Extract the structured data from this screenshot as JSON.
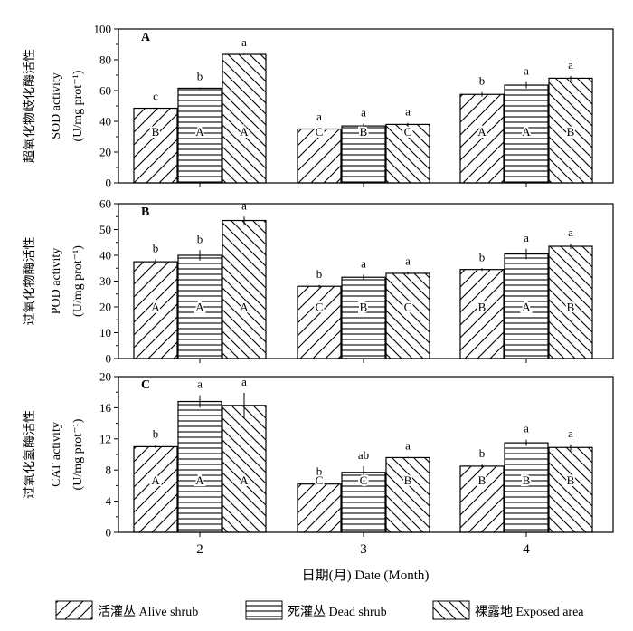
{
  "chart_data": [
    {
      "type": "bar",
      "panel_letter": "A",
      "categories": [
        "2",
        "3",
        "4"
      ],
      "series": [
        {
          "name": "Alive shrub",
          "values": [
            48.5,
            35.0,
            57.5
          ],
          "errors": [
            0.5,
            1.0,
            1.5
          ]
        },
        {
          "name": "Dead shrub",
          "values": [
            61.5,
            37.0,
            63.5
          ],
          "errors": [
            0.5,
            1.5,
            2.0
          ]
        },
        {
          "name": "Exposed area",
          "values": [
            83.5,
            38.0,
            68.0
          ],
          "errors": [
            0.5,
            1.0,
            1.5
          ]
        }
      ],
      "ylabel_cn": "超氧化物歧化酶活性",
      "ylabel": "SOD activity",
      "yunit": "(U/mg prot⁻¹)",
      "ylim": [
        0,
        100
      ],
      "yticks": [
        "0",
        "20",
        "40",
        "60",
        "80",
        "100"
      ],
      "lowercase_letters": [
        [
          "c",
          "b",
          "a"
        ],
        [
          "a",
          "a",
          "a"
        ],
        [
          "b",
          "a",
          "a"
        ]
      ],
      "uppercase_letters": [
        [
          "B",
          "A",
          "A"
        ],
        [
          "C",
          "B",
          "C"
        ],
        [
          "A",
          "A",
          "B"
        ]
      ]
    },
    {
      "type": "bar",
      "panel_letter": "B",
      "categories": [
        "2",
        "3",
        "4"
      ],
      "series": [
        {
          "name": "Alive shrub",
          "values": [
            37.5,
            28.0,
            34.5
          ],
          "errors": [
            1.0,
            0.5,
            0.5
          ]
        },
        {
          "name": "Dead shrub",
          "values": [
            40.0,
            31.5,
            40.5
          ],
          "errors": [
            2.0,
            1.0,
            2.0
          ]
        },
        {
          "name": "Exposed area",
          "values": [
            53.5,
            33.0,
            43.5
          ],
          "errors": [
            1.5,
            0.5,
            1.0
          ]
        }
      ],
      "ylabel_cn": "过氧化物酶活性",
      "ylabel": "POD activity",
      "yunit": "(U/mg prot⁻¹)",
      "ylim": [
        0,
        60
      ],
      "yticks": [
        "0",
        "10",
        "20",
        "30",
        "40",
        "50",
        "60"
      ],
      "lowercase_letters": [
        [
          "b",
          "b",
          "a"
        ],
        [
          "b",
          "a",
          "a"
        ],
        [
          "b",
          "a",
          "a"
        ]
      ],
      "uppercase_letters": [
        [
          "A",
          "A",
          "A"
        ],
        [
          "C",
          "B",
          "C"
        ],
        [
          "B",
          "A",
          "B"
        ]
      ]
    },
    {
      "type": "bar",
      "panel_letter": "C",
      "categories": [
        "2",
        "3",
        "4"
      ],
      "series": [
        {
          "name": "Alive shrub",
          "values": [
            11.0,
            6.2,
            8.5
          ],
          "errors": [
            0.2,
            0.2,
            0.2
          ]
        },
        {
          "name": "Dead shrub",
          "values": [
            16.8,
            7.7,
            11.5
          ],
          "errors": [
            0.8,
            0.8,
            0.4
          ]
        },
        {
          "name": "Exposed area",
          "values": [
            16.3,
            9.6,
            10.9
          ],
          "errors": [
            1.6,
            0.1,
            0.4
          ]
        }
      ],
      "ylabel_cn": "过氧化氢酶活性",
      "ylabel": "CAT activity",
      "yunit": "(U/mg prot⁻¹)",
      "ylim": [
        0,
        20
      ],
      "yticks": [
        "0",
        "4",
        "8",
        "12",
        "16",
        "20"
      ],
      "lowercase_letters": [
        [
          "b",
          "a",
          "a"
        ],
        [
          "b",
          "ab",
          "a"
        ],
        [
          "b",
          "a",
          "a"
        ]
      ],
      "uppercase_letters": [
        [
          "A",
          "A",
          "A"
        ],
        [
          "C",
          "C",
          "B"
        ],
        [
          "B",
          "B",
          "B"
        ]
      ]
    }
  ],
  "xlabel": "日期(月) Date (Month)",
  "legend": [
    {
      "cn": "活灌丛",
      "en": "Alive shrub",
      "pattern": "diag-up"
    },
    {
      "cn": "死灌丛",
      "en": "Dead shrub",
      "pattern": "horizontal"
    },
    {
      "cn": "裸露地",
      "en": "Exposed area",
      "pattern": "diag-down"
    }
  ]
}
